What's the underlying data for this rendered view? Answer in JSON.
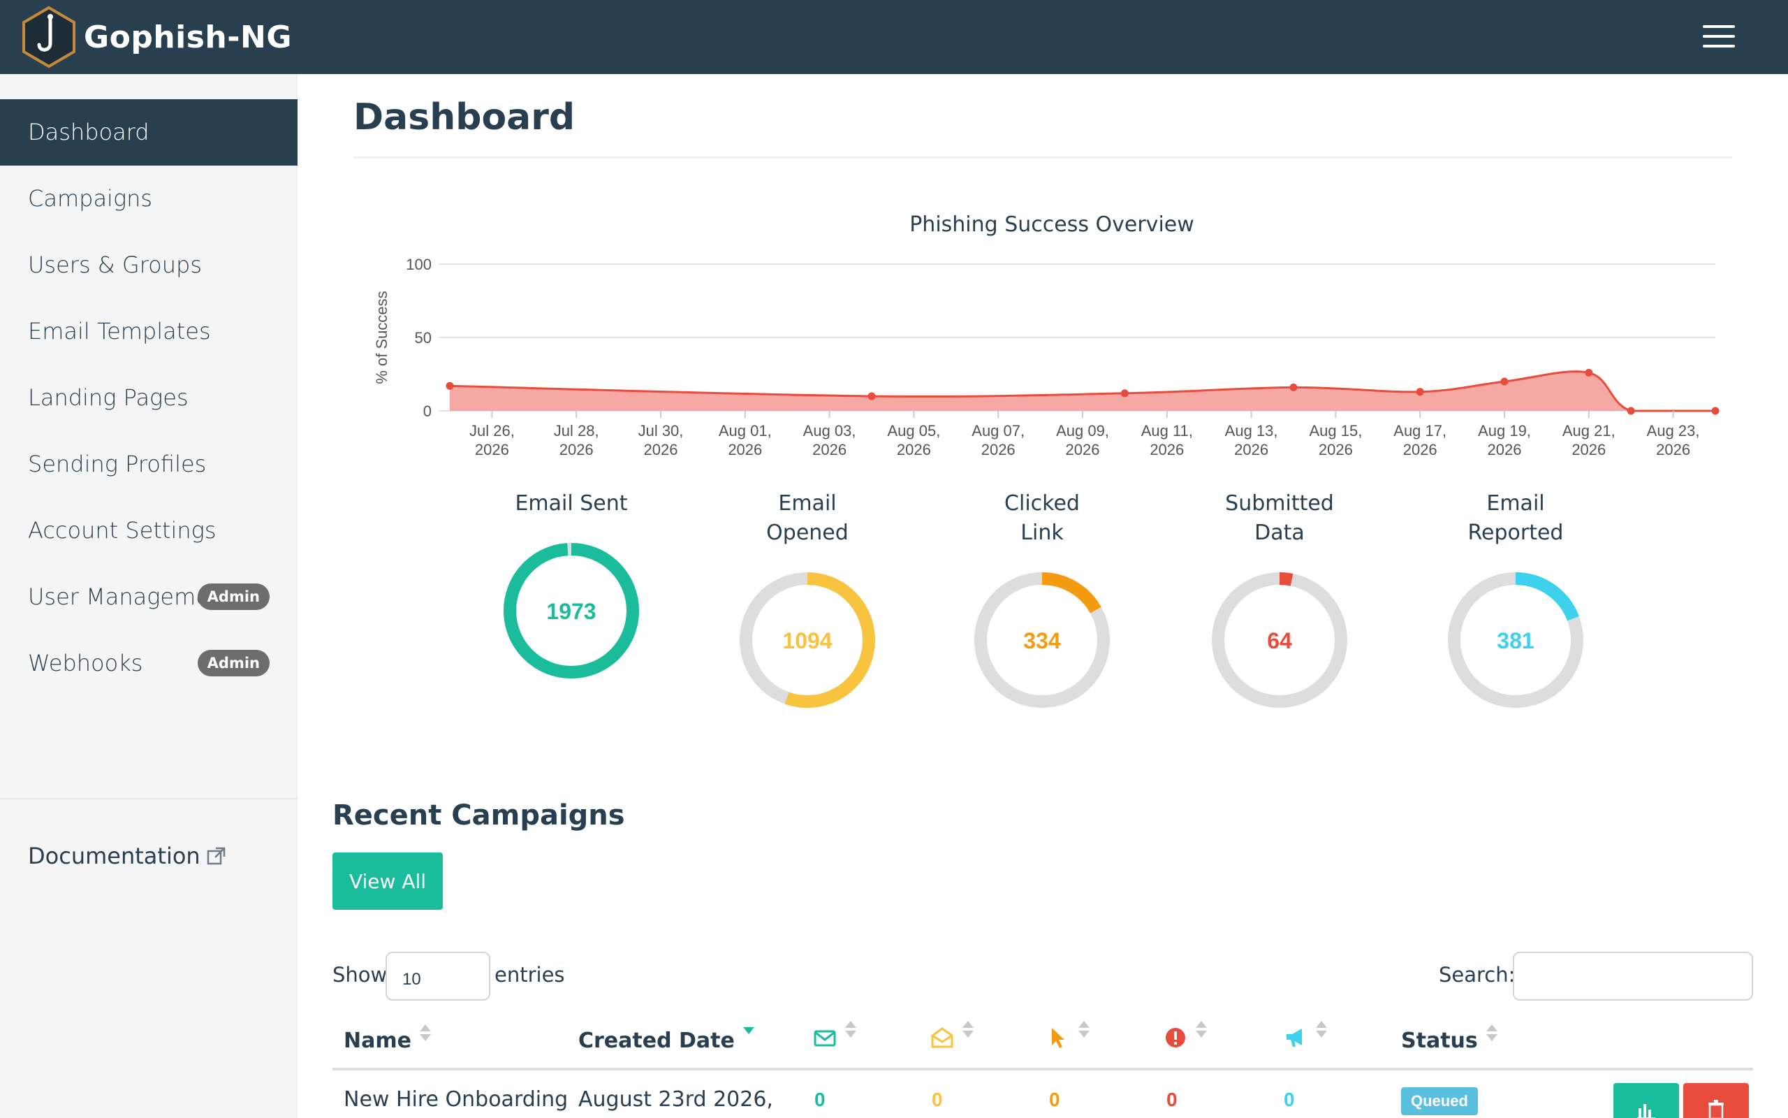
{
  "app": {
    "name": "Gophish-NG"
  },
  "sidebar": {
    "items": [
      {
        "label": "Dashboard",
        "active": true
      },
      {
        "label": "Campaigns"
      },
      {
        "label": "Users & Groups"
      },
      {
        "label": "Email Templates"
      },
      {
        "label": "Landing Pages"
      },
      {
        "label": "Sending Profiles"
      },
      {
        "label": "Account Settings"
      },
      {
        "label": "User Management",
        "badge": "Admin"
      },
      {
        "label": "Webhooks",
        "badge": "Admin"
      }
    ],
    "documentation": "Documentation"
  },
  "page": {
    "title": "Dashboard"
  },
  "chart_data": {
    "type": "area",
    "title": "Phishing Success Overview",
    "ylabel": "% of Success",
    "ylim": [
      0,
      100
    ],
    "yticks": [
      "100",
      "50",
      "0"
    ],
    "x_tick_labels": [
      [
        "Jul 26,",
        "2026"
      ],
      [
        "Jul 28,",
        "2026"
      ],
      [
        "Jul 30,",
        "2026"
      ],
      [
        "Aug 01,",
        "2026"
      ],
      [
        "Aug 03,",
        "2026"
      ],
      [
        "Aug 05,",
        "2026"
      ],
      [
        "Aug 07,",
        "2026"
      ],
      [
        "Aug 09,",
        "2026"
      ],
      [
        "Aug 11,",
        "2026"
      ],
      [
        "Aug 13,",
        "2026"
      ],
      [
        "Aug 15,",
        "2026"
      ],
      [
        "Aug 17,",
        "2026"
      ],
      [
        "Aug 19,",
        "2026"
      ],
      [
        "Aug 21,",
        "2026"
      ],
      [
        "Aug 23,",
        "2026"
      ]
    ],
    "xlim": [
      "2026-07-25",
      "2026-08-24"
    ],
    "points": [
      {
        "x": "2026-07-25",
        "y": 17
      },
      {
        "x": "2026-08-04",
        "y": 10
      },
      {
        "x": "2026-08-10",
        "y": 12
      },
      {
        "x": "2026-08-14",
        "y": 16
      },
      {
        "x": "2026-08-17",
        "y": 13
      },
      {
        "x": "2026-08-19",
        "y": 20
      },
      {
        "x": "2026-08-21",
        "y": 26
      },
      {
        "x": "2026-08-22",
        "y": 0
      },
      {
        "x": "2026-08-24",
        "y": 0
      }
    ],
    "color": "#e74c3c",
    "fill": "#f5a8a4",
    "grid": true
  },
  "stats": [
    {
      "label_lines": [
        "Email Sent"
      ],
      "value": "1973",
      "fraction": 0.99,
      "color": "#1abc9c"
    },
    {
      "label_lines": [
        "Email",
        "Opened"
      ],
      "value": "1094",
      "fraction": 0.554,
      "color": "#f8c33f"
    },
    {
      "label_lines": [
        "Clicked",
        "Link"
      ],
      "value": "334",
      "fraction": 0.169,
      "color": "#f39c12"
    },
    {
      "label_lines": [
        "Submitted",
        "Data"
      ],
      "value": "64",
      "fraction": 0.032,
      "color": "#e74c3c"
    },
    {
      "label_lines": [
        "Email",
        "Reported"
      ],
      "value": "381",
      "fraction": 0.193,
      "color": "#3ed1ee"
    }
  ],
  "recent": {
    "title": "Recent Campaigns",
    "view_all": "View All",
    "show_label": "Show",
    "entries_value": "10",
    "entries_label": "entries",
    "search_label": "Search:",
    "columns": {
      "name": "Name",
      "created": "Created Date",
      "status": "Status"
    },
    "rows": [
      {
        "name": "New Hire Onboarding",
        "created": "August 23rd 2026,",
        "sent": "0",
        "opened": "0",
        "clicked": "0",
        "submitted": "0",
        "reported": "0",
        "status": "Queued"
      }
    ]
  },
  "colors": {
    "navbar": "#283f50",
    "accent": "#1abc9c",
    "danger": "#e74c3c",
    "info": "#5bc0de"
  },
  "icons": {
    "logo": "hook-logo-icon",
    "menu": "hamburger-icon",
    "external": "external-link-icon",
    "sent": "envelope-icon",
    "opened": "envelope-open-icon",
    "clicked": "cursor-icon",
    "submitted": "exclamation-circle-icon",
    "reported": "bullhorn-icon"
  }
}
